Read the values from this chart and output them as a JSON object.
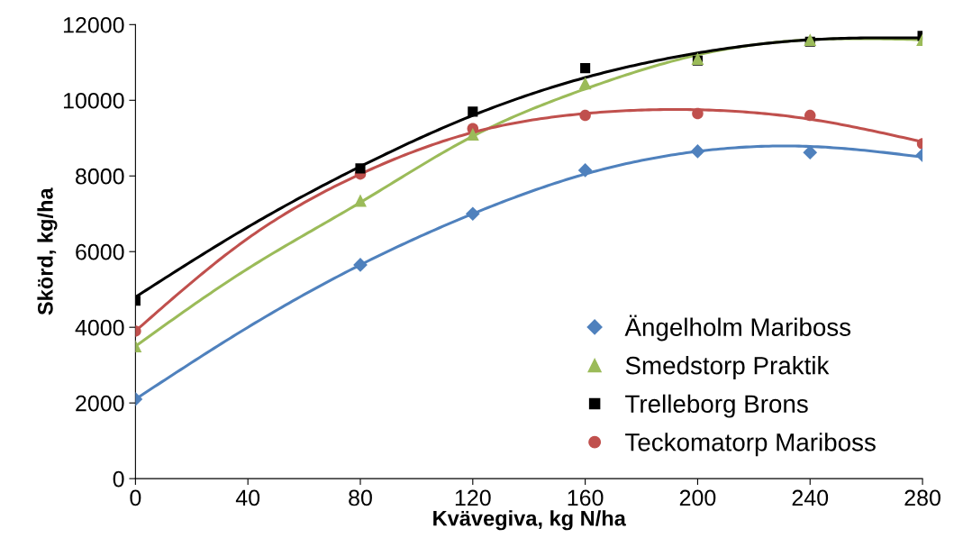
{
  "chart_data": {
    "type": "scatter",
    "xlabel": "Kvävegiva, kg N/ha",
    "ylabel": "Skörd, kg/ha",
    "x": [
      0,
      80,
      120,
      160,
      200,
      240,
      280
    ],
    "xlim": [
      0,
      280
    ],
    "xticks": [
      0,
      40,
      80,
      120,
      160,
      200,
      240,
      280
    ],
    "ylim": [
      0,
      12000
    ],
    "yticks": [
      0,
      2000,
      4000,
      6000,
      8000,
      10000,
      12000
    ],
    "grid": false,
    "legend": "bottom right",
    "series": [
      {
        "name": "Ängelholm Mariboss",
        "color": "#4f81bd",
        "marker": "diamond",
        "values": [
          2100,
          5650,
          7000,
          8150,
          8650,
          8620,
          8550
        ]
      },
      {
        "name": "Smedstorp Praktik",
        "color": "#9bbb59",
        "marker": "triangle",
        "values": [
          3500,
          7350,
          9100,
          10450,
          11100,
          11600,
          11600
        ]
      },
      {
        "name": "Trelleborg Brons",
        "color": "#000000",
        "marker": "square",
        "values": [
          4700,
          8200,
          9700,
          10850,
          11050,
          11550,
          11700
        ]
      },
      {
        "name": "Teckomatorp Mariboss",
        "color": "#c0504d",
        "marker": "circle",
        "values": [
          3900,
          8050,
          9250,
          9600,
          9650,
          9600,
          8850
        ]
      },
      {
        "type": "line",
        "color": "#4f81bd",
        "x": [
          0,
          40,
          80,
          120,
          160,
          200,
          240,
          280
        ],
        "values": [
          2100,
          4000,
          5650,
          7000,
          8050,
          8650,
          8780,
          8500
        ]
      },
      {
        "type": "line",
        "color": "#9bbb59",
        "x": [
          0,
          40,
          80,
          120,
          160,
          200,
          240,
          280
        ],
        "values": [
          3500,
          5550,
          7300,
          9050,
          10300,
          11200,
          11600,
          11600
        ]
      },
      {
        "type": "line",
        "color": "#000000",
        "x": [
          0,
          40,
          80,
          120,
          160,
          200,
          240,
          280
        ],
        "values": [
          4800,
          6650,
          8250,
          9600,
          10600,
          11250,
          11600,
          11650
        ]
      },
      {
        "type": "line",
        "color": "#c0504d",
        "x": [
          0,
          40,
          80,
          120,
          160,
          200,
          240,
          280
        ],
        "values": [
          3900,
          6350,
          8050,
          9150,
          9650,
          9750,
          9500,
          8900
        ]
      }
    ]
  }
}
